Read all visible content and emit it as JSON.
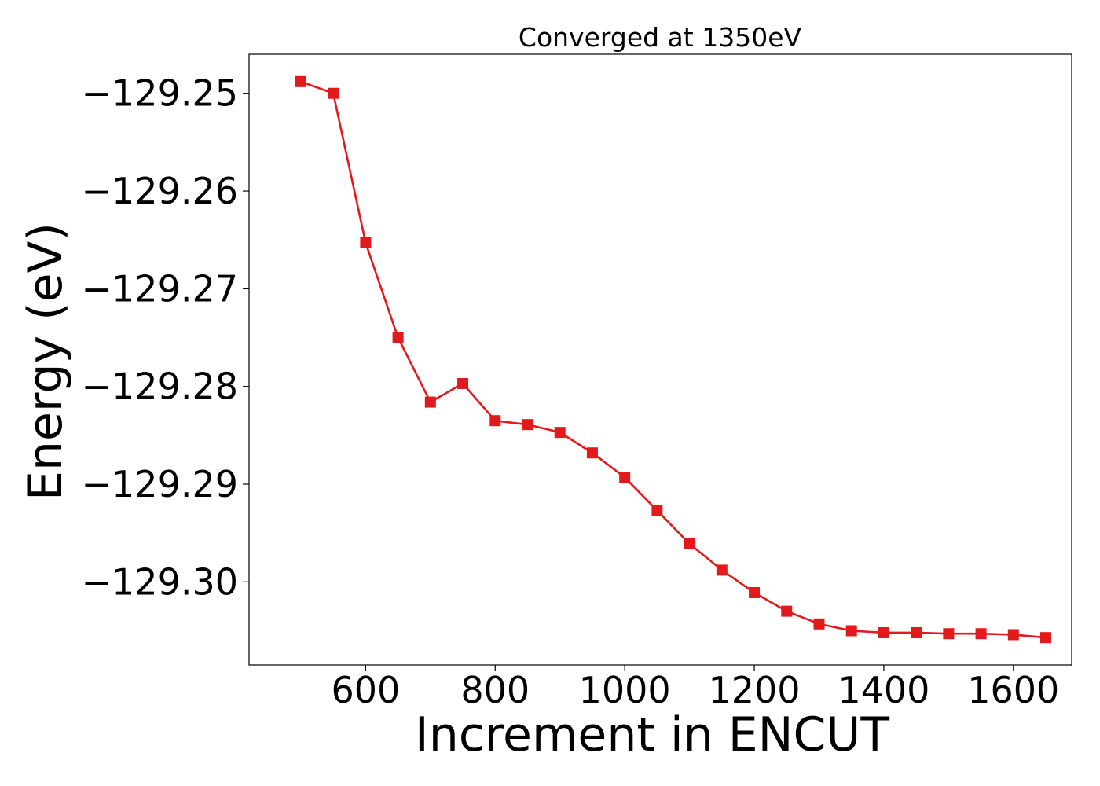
{
  "chart_data": {
    "type": "line",
    "title": "Converged at 1350eV",
    "xlabel": "Increment in ENCUT",
    "ylabel": "Energy (eV)",
    "xlim": [
      420,
      1690
    ],
    "ylim": [
      -129.3085,
      -129.246
    ],
    "xticks": [
      600,
      800,
      1000,
      1200,
      1400,
      1600
    ],
    "yticks": [
      -129.25,
      -129.26,
      -129.27,
      -129.28,
      -129.29,
      -129.3
    ],
    "ytick_labels": [
      "−129.25",
      "−129.26",
      "−129.27",
      "−129.28",
      "−129.29",
      "−129.30"
    ],
    "grid": false,
    "series": [
      {
        "color": "#e31a1c",
        "marker": "square",
        "x": [
          500,
          550,
          600,
          650,
          700,
          750,
          800,
          850,
          900,
          950,
          1000,
          1050,
          1100,
          1150,
          1200,
          1250,
          1300,
          1350,
          1400,
          1450,
          1500,
          1550,
          1600,
          1650
        ],
        "y": [
          -129.2488,
          -129.25,
          -129.2653,
          -129.275,
          -129.2816,
          -129.2797,
          -129.2835,
          -129.2839,
          -129.2847,
          -129.2868,
          -129.2893,
          -129.2927,
          -129.2961,
          -129.2988,
          -129.3011,
          -129.303,
          -129.3043,
          -129.305,
          -129.3052,
          -129.3052,
          -129.3053,
          -129.3053,
          -129.3054,
          -129.3057
        ]
      }
    ]
  }
}
